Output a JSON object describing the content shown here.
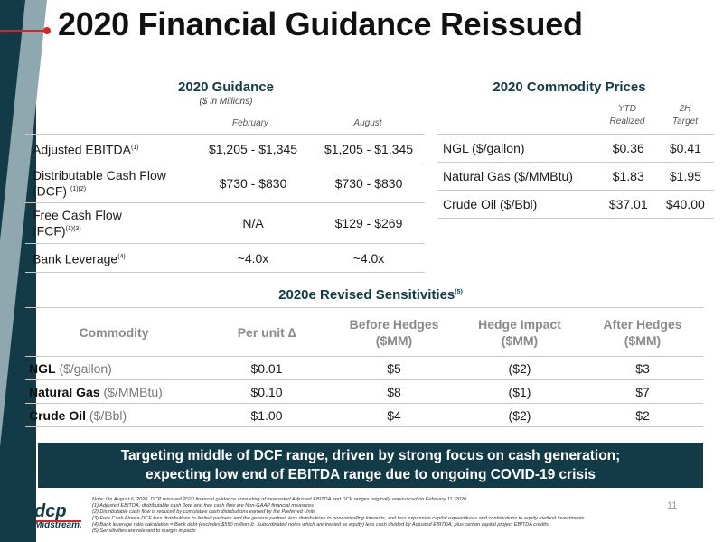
{
  "title": "2020 Financial Guidance Reissued",
  "guidance": {
    "heading": "2020 Guidance",
    "subheading": "($ in Millions)",
    "col_feb": "February",
    "col_aug": "August",
    "rows": [
      {
        "label": "Adjusted EBITDA",
        "fn": "(1)",
        "feb": "$1,205 - $1,345",
        "aug": "$1,205 - $1,345"
      },
      {
        "label_line1": "Distributable Cash Flow",
        "label_line2": "(DCF)",
        "fn": "(1)(2)",
        "feb": "$730 - $830",
        "aug": "$730 - $830"
      },
      {
        "label_line1": "Free Cash Flow",
        "label_line2": "(FCF)",
        "fn": "(1)(3)",
        "feb": "N/A",
        "aug": "$129 - $269"
      },
      {
        "label": "Bank Leverage",
        "fn": "(4)",
        "feb": "~4.0x",
        "aug": "~4.0x"
      }
    ]
  },
  "prices": {
    "heading": "2020 Commodity Prices",
    "col1_line1": "YTD",
    "col1_line2": "Realized",
    "col2_line1": "2H",
    "col2_line2": "Target",
    "rows": [
      {
        "label": "NGL ($/gallon)",
        "ytd": "$0.36",
        "target": "$0.41"
      },
      {
        "label": "Natural Gas ($/MMBtu)",
        "ytd": "$1.83",
        "target": "$1.95"
      },
      {
        "label": "Crude Oil ($/Bbl)",
        "ytd": "$37.01",
        "target": "$40.00"
      }
    ]
  },
  "sensitivities": {
    "heading": "2020e Revised Sensitivities",
    "fn": "(5)",
    "headers": {
      "commodity": "Commodity",
      "per_unit": "Per unit ∆",
      "before_1": "Before Hedges",
      "before_2": "($MM)",
      "impact_1": "Hedge Impact",
      "impact_2": "($MM)",
      "after_1": "After Hedges",
      "after_2": "($MM)"
    },
    "rows": [
      {
        "name": "NGL",
        "unit": "($/gallon)",
        "per_unit": "$0.01",
        "before": "$5",
        "impact": "($2)",
        "after": "$3"
      },
      {
        "name": "Natural Gas",
        "unit": "($/MMBtu)",
        "per_unit": "$0.10",
        "before": "$8",
        "impact": "($1)",
        "after": "$7"
      },
      {
        "name": "Crude Oil",
        "unit": "($/Bbl)",
        "per_unit": "$1.00",
        "before": "$4",
        "impact": "($2)",
        "after": "$2"
      }
    ]
  },
  "banner": {
    "line1": "Targeting middle of DCF range, driven by strong focus on cash generation;",
    "line2": "expecting low end of EBITDA range due to ongoing COVID-19 crisis"
  },
  "logo": {
    "top": "dcp",
    "bottom": "Midstream."
  },
  "notes": [
    "Note: On August 6, 2020, DCP reissued 2020 financial guidance consisting of forecasted Adjusted EBITDA and DCF ranges originally announced on February 11, 2020",
    "(1)    Adjusted EBITDA, distributable cash flow, and free cash flow are Non-GAAP financial measures",
    "(2)    Distributable cash flow is reduced by cumulative cash distributions earned by the Preferred Units",
    "(3)    Free Cash Flow = DCF less distributions to limited partners and the general partner, less distributions to noncontrolling interests, and less expansion capital expenditures and contributions to equity method investments.",
    "(4)    Bank leverage ratio calculation = Bank debt (excludes $550 million Jr. Subordinated notes which are treated as equity) less cash divided by Adjusted EBITDA, plus certain capital project EBITDA credits",
    "(5)    Sensitivities are relevant to margin impacts"
  ],
  "page_number": "11",
  "colors": {
    "brand_dark": "#123b47",
    "accent_red": "#d8232a",
    "header_gray": "#8a8a8a"
  }
}
